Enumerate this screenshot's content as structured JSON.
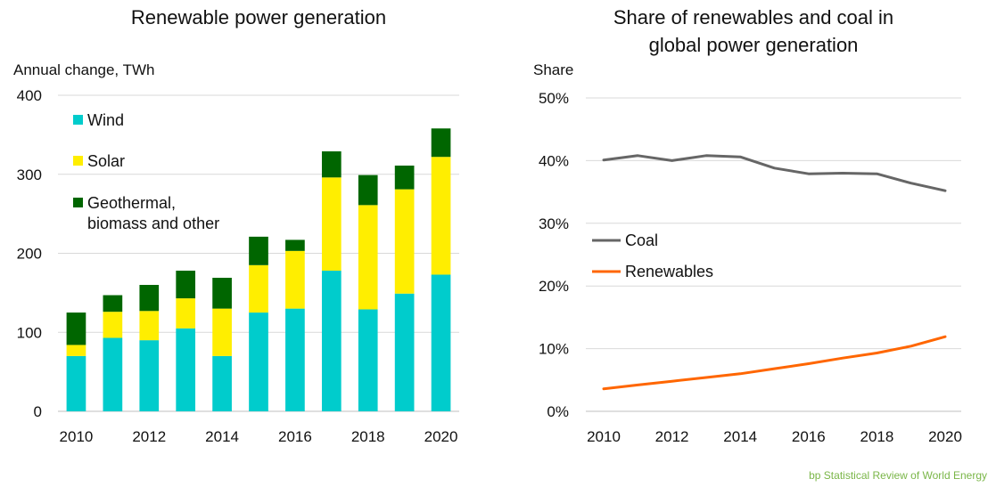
{
  "chart_data": [
    {
      "type": "bar",
      "stacked": true,
      "title": "Renewable power generation",
      "ylabel": "Annual change, TWh",
      "xlabel": "",
      "ylim": [
        0,
        400
      ],
      "yticks": [
        0,
        100,
        200,
        300,
        400
      ],
      "categories": [
        "2010",
        "2011",
        "2012",
        "2013",
        "2014",
        "2015",
        "2016",
        "2017",
        "2018",
        "2019",
        "2020"
      ],
      "xtick_labels": [
        "2010",
        "",
        "2012",
        "",
        "2014",
        "",
        "2016",
        "",
        "2018",
        "",
        "2020"
      ],
      "grid": true,
      "legend_position": "top-left",
      "series": [
        {
          "name": "Wind",
          "color": "#00cccc",
          "values": [
            70,
            93,
            90,
            105,
            70,
            125,
            130,
            178,
            129,
            149,
            173
          ]
        },
        {
          "name": "Solar",
          "color": "#ffee00",
          "values": [
            14,
            33,
            37,
            38,
            60,
            60,
            73,
            118,
            132,
            132,
            149
          ]
        },
        {
          "name": "Geothermal, biomass and other",
          "name_lines": [
            "Geothermal,",
            "biomass and other"
          ],
          "color": "#006600",
          "values": [
            41,
            21,
            33,
            35,
            39,
            36,
            14,
            33,
            38,
            30,
            36
          ]
        }
      ]
    },
    {
      "type": "line",
      "title": "Share of renewables and coal in global power generation",
      "title_lines": [
        "Share of renewables and coal in",
        "global power generation"
      ],
      "ylabel": "Share",
      "xlabel": "",
      "ylim": [
        0,
        50
      ],
      "yticks": [
        0,
        10,
        20,
        30,
        40,
        50
      ],
      "ytick_suffix": "%",
      "x": [
        2010,
        2011,
        2012,
        2013,
        2014,
        2015,
        2016,
        2017,
        2018,
        2019,
        2020
      ],
      "xtick_labels": [
        "2010",
        "2012",
        "2014",
        "2016",
        "2018",
        "2020"
      ],
      "grid": true,
      "legend_position": "center-left",
      "series": [
        {
          "name": "Coal",
          "color": "#666666",
          "values": [
            40.1,
            40.8,
            40.0,
            40.8,
            40.6,
            38.8,
            37.9,
            38.0,
            37.9,
            36.4,
            35.2
          ]
        },
        {
          "name": "Renewables",
          "color": "#ff6600",
          "values": [
            3.6,
            4.2,
            4.8,
            5.4,
            6.0,
            6.8,
            7.6,
            8.5,
            9.3,
            10.4,
            11.9
          ]
        }
      ]
    }
  ],
  "source": "bp Statistical Review of World Energy"
}
